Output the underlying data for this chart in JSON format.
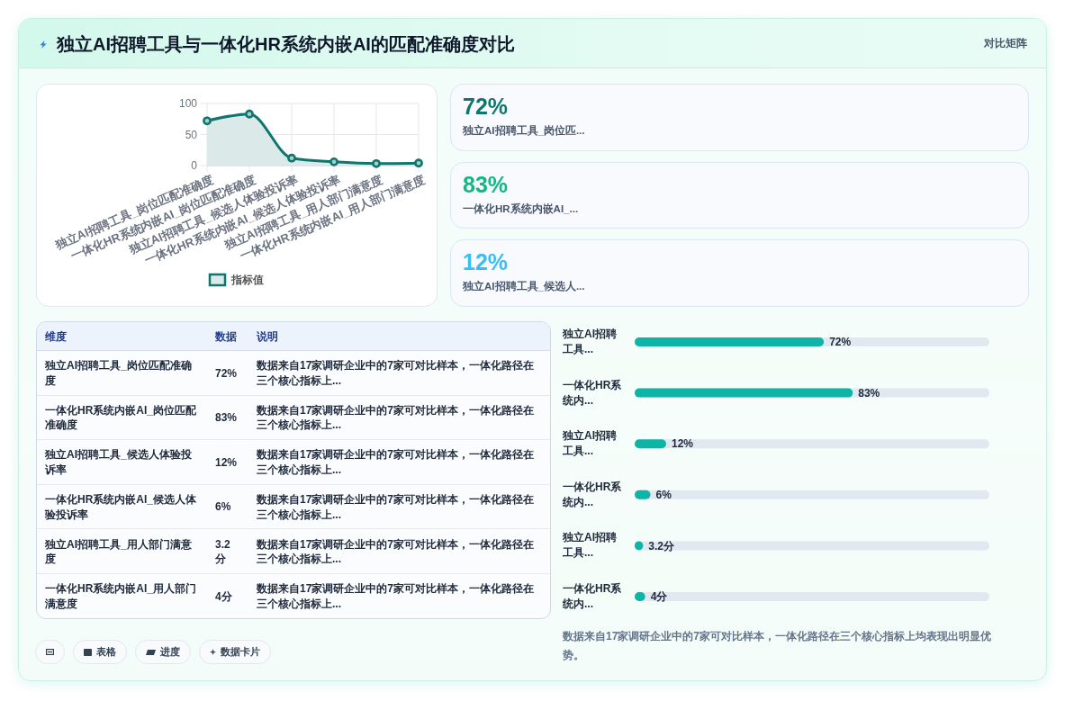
{
  "chart_data": [
    {
      "type": "other",
      "title": "独立AI招聘工具与一体化HR系统内嵌AI的匹配准确度对比",
      "annotations": [
        "对比矩阵"
      ]
    },
    {
      "type": "area",
      "categories": [
        "独立AI招聘工具_岗位匹配准确度",
        "一体化HR系统内嵌AI_岗位匹配准确度",
        "独立AI招聘工具_候选人体验投诉率",
        "一体化HR系统内嵌AI_候选人体验投诉率",
        "独立AI招聘工具_用人部门满意度",
        "一体化HR系统内嵌AI_用人部门满意度"
      ],
      "series": [
        {
          "name": "指标值",
          "color": "#0f766e",
          "values": [
            72,
            83,
            12,
            6,
            3.2,
            4
          ]
        }
      ],
      "ylim": [
        0,
        100
      ],
      "yticks": [
        0,
        50,
        100
      ],
      "grid": true,
      "legend": "bottom",
      "marker": "circle"
    },
    {
      "type": "other",
      "annotations": [
        "72%",
        "独立AI招聘工具_岗位匹...",
        "83%",
        "一体化HR系统内嵌AI_...",
        "12%",
        "独立AI招聘工具_候选人..."
      ],
      "colors": [
        "#0f766e",
        "#10b981",
        "#38bdf8"
      ]
    },
    {
      "type": "other",
      "categories": [
        "维度",
        "数据",
        "说明"
      ],
      "annotations": [
        "独立AI招聘工具_岗位匹配准确度",
        "72%",
        "数据来自17家调研企业中的7家可对比样本，一体化路径在三个核心指标上...",
        "一体化HR系统内嵌AI_岗位匹配准确度",
        "83%",
        "数据来自17家调研企业中的7家可对比样本，一体化路径在三个核心指标上...",
        "独立AI招聘工具_候选人体验投诉率",
        "12%",
        "数据来自17家调研企业中的7家可对比样本，一体化路径在三个核心指标上...",
        "一体化HR系统内嵌AI_候选人体验投诉率",
        "6%",
        "数据来自17家调研企业中的7家可对比样本，一体化路径在三个核心指标上...",
        "独立AI招聘工具_用人部门满意度",
        "3.2分",
        "数据来自17家调研企业中的7家可对比样本，一体化路径在三个核心指标上...",
        "一体化HR系统内嵌AI_用人部门满意度",
        "4分",
        "数据来自17家调研企业中的7家可对比样本，一体化路径在三个核心指标上..."
      ]
    },
    {
      "type": "bar",
      "orientation": "horizontal",
      "categories": [
        "独立AI招聘工具...",
        "一体化HR系统内...",
        "独立AI招聘工具...",
        "一体化HR系统内...",
        "独立AI招聘工具...",
        "一体化HR系统内..."
      ],
      "values": [
        72,
        83,
        12,
        6,
        3.2,
        4
      ],
      "value_labels": [
        "72%",
        "83%",
        "12%",
        "6%",
        "3.2分",
        "4分"
      ],
      "color": "#0eb5a6",
      "xlim": [
        0,
        135
      ],
      "tick_labels": "y",
      "annotations": [
        "数据来自17家调研企业中的7家可对比样本，一体化路径在三个核心指标上均表现出明显优势。"
      ]
    },
    {
      "type": "other",
      "annotations": [
        "表格",
        "进度",
        "数据卡片"
      ]
    }
  ]
}
